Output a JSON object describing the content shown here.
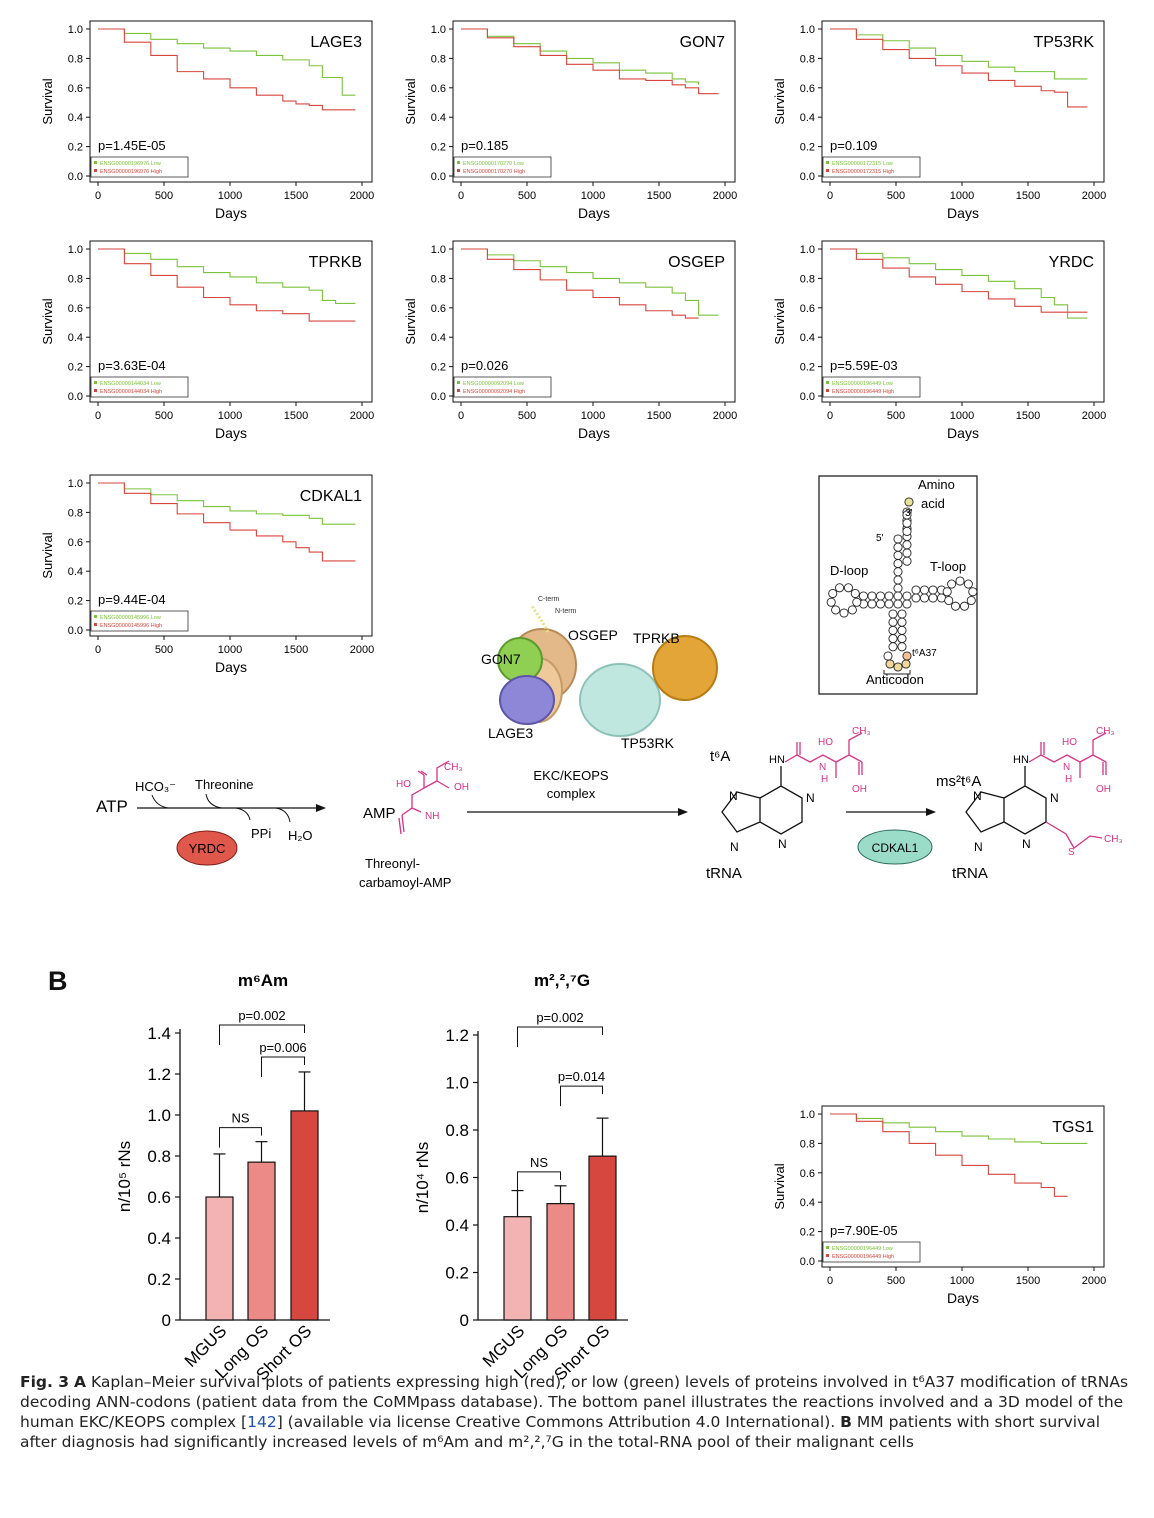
{
  "km_axes": {
    "ylabel": "Survival",
    "xlabel": "Days",
    "xticks": [
      0,
      500,
      1000,
      1500,
      2000
    ],
    "yticks": [
      0.0,
      0.2,
      0.4,
      0.6,
      0.8,
      1.0
    ],
    "ytick_labels": [
      "0.0",
      "0.2",
      "0.4",
      "0.6",
      "0.8",
      "1.0"
    ]
  },
  "colors": {
    "low": "#7bc23a",
    "high": "#d7463c",
    "bar_mgus": "#f3b3b3",
    "bar_long": "#ec8a88",
    "bar_short": "#d6473f",
    "magenta": "#d63384",
    "yrdc": "#e0574b",
    "cdkal1": "#9adcc8"
  },
  "chart_data": [
    {
      "type": "line",
      "title": "LAGE3",
      "pvalue": "p=1.45E-05",
      "xlim": [
        0,
        2000
      ],
      "ylim": [
        0,
        1
      ],
      "series": [
        {
          "name": "ENSG00000196976 Low",
          "x": [
            0,
            200,
            400,
            600,
            800,
            1000,
            1200,
            1400,
            1600,
            1700,
            1800,
            1850,
            1950
          ],
          "y": [
            1.0,
            0.97,
            0.93,
            0.9,
            0.87,
            0.85,
            0.82,
            0.79,
            0.75,
            0.67,
            0.67,
            0.55,
            0.55
          ]
        },
        {
          "name": "ENSG00000196976 High",
          "x": [
            0,
            200,
            400,
            600,
            800,
            1000,
            1200,
            1400,
            1500,
            1600,
            1700,
            1800,
            1950
          ],
          "y": [
            1.0,
            0.91,
            0.82,
            0.71,
            0.66,
            0.6,
            0.55,
            0.51,
            0.49,
            0.48,
            0.45,
            0.45,
            0.45
          ]
        }
      ]
    },
    {
      "type": "line",
      "title": "GON7",
      "pvalue": "p=0.185",
      "xlim": [
        0,
        2000
      ],
      "ylim": [
        0,
        1
      ],
      "series": [
        {
          "name": "ENSG00000170270 Low",
          "x": [
            0,
            200,
            400,
            600,
            800,
            1000,
            1200,
            1400,
            1600,
            1700,
            1800
          ],
          "y": [
            1.0,
            0.95,
            0.9,
            0.85,
            0.8,
            0.77,
            0.72,
            0.7,
            0.66,
            0.64,
            0.62
          ]
        },
        {
          "name": "ENSG00000170270 High",
          "x": [
            0,
            200,
            400,
            600,
            800,
            1000,
            1200,
            1400,
            1600,
            1700,
            1800,
            1950
          ],
          "y": [
            1.0,
            0.94,
            0.88,
            0.82,
            0.76,
            0.72,
            0.66,
            0.65,
            0.62,
            0.6,
            0.56,
            0.56
          ]
        }
      ]
    },
    {
      "type": "line",
      "title": "TP53RK",
      "pvalue": "p=0.109",
      "xlim": [
        0,
        2000
      ],
      "ylim": [
        0,
        1
      ],
      "series": [
        {
          "name": "ENSG00000172315 Low",
          "x": [
            0,
            200,
            400,
            600,
            800,
            1000,
            1200,
            1400,
            1600,
            1700,
            1800,
            1950
          ],
          "y": [
            1.0,
            0.96,
            0.92,
            0.87,
            0.82,
            0.78,
            0.74,
            0.71,
            0.71,
            0.66,
            0.66,
            0.66
          ]
        },
        {
          "name": "ENSG00000172315 High",
          "x": [
            0,
            200,
            400,
            600,
            800,
            1000,
            1200,
            1400,
            1600,
            1700,
            1800,
            1950
          ],
          "y": [
            1.0,
            0.93,
            0.86,
            0.8,
            0.75,
            0.7,
            0.65,
            0.61,
            0.58,
            0.57,
            0.47,
            0.47
          ]
        }
      ]
    },
    {
      "type": "line",
      "title": "TPRKB",
      "pvalue": "p=3.63E-04",
      "xlim": [
        0,
        2000
      ],
      "ylim": [
        0,
        1
      ],
      "series": [
        {
          "name": "ENSG00000144034 Low",
          "x": [
            0,
            200,
            400,
            600,
            800,
            1000,
            1200,
            1400,
            1600,
            1700,
            1800,
            1950
          ],
          "y": [
            1.0,
            0.97,
            0.93,
            0.88,
            0.84,
            0.81,
            0.77,
            0.74,
            0.72,
            0.65,
            0.63,
            0.63
          ]
        },
        {
          "name": "ENSG00000144034 High",
          "x": [
            0,
            200,
            400,
            600,
            800,
            1000,
            1200,
            1400,
            1500,
            1600,
            1800,
            1950
          ],
          "y": [
            1.0,
            0.9,
            0.82,
            0.74,
            0.67,
            0.62,
            0.58,
            0.56,
            0.56,
            0.51,
            0.51,
            0.51
          ]
        }
      ]
    },
    {
      "type": "line",
      "title": "OSGEP",
      "pvalue": "p=0.026",
      "xlim": [
        0,
        2000
      ],
      "ylim": [
        0,
        1
      ],
      "series": [
        {
          "name": "ENSG00000092094 Low",
          "x": [
            0,
            200,
            400,
            600,
            800,
            1000,
            1200,
            1400,
            1600,
            1700,
            1800,
            1950
          ],
          "y": [
            1.0,
            0.96,
            0.92,
            0.88,
            0.84,
            0.8,
            0.77,
            0.74,
            0.7,
            0.65,
            0.55,
            0.55
          ]
        },
        {
          "name": "ENSG00000092094 High",
          "x": [
            0,
            200,
            400,
            600,
            800,
            1000,
            1200,
            1400,
            1600,
            1700,
            1800
          ],
          "y": [
            1.0,
            0.93,
            0.86,
            0.79,
            0.72,
            0.67,
            0.62,
            0.58,
            0.55,
            0.53,
            0.53
          ]
        }
      ]
    },
    {
      "type": "line",
      "title": "YRDC",
      "pvalue": "p=5.59E-03",
      "xlim": [
        0,
        2000
      ],
      "ylim": [
        0,
        1
      ],
      "series": [
        {
          "name": "ENSG00000196449 Low",
          "x": [
            0,
            200,
            400,
            600,
            800,
            1000,
            1200,
            1400,
            1600,
            1700,
            1800,
            1950
          ],
          "y": [
            1.0,
            0.97,
            0.94,
            0.9,
            0.86,
            0.82,
            0.78,
            0.73,
            0.67,
            0.62,
            0.53,
            0.53
          ]
        },
        {
          "name": "ENSG00000196449 High",
          "x": [
            0,
            200,
            400,
            600,
            800,
            1000,
            1200,
            1400,
            1600,
            1700,
            1800,
            1950
          ],
          "y": [
            1.0,
            0.93,
            0.87,
            0.81,
            0.76,
            0.71,
            0.66,
            0.61,
            0.57,
            0.57,
            0.57,
            0.57
          ]
        }
      ]
    },
    {
      "type": "line",
      "title": "CDKAL1",
      "pvalue": "p=9.44E-04",
      "xlim": [
        0,
        2000
      ],
      "ylim": [
        0,
        1
      ],
      "series": [
        {
          "name": "ENSG00000145996 Low",
          "x": [
            0,
            200,
            400,
            600,
            800,
            1000,
            1200,
            1400,
            1600,
            1700,
            1800,
            1950
          ],
          "y": [
            1.0,
            0.96,
            0.92,
            0.88,
            0.84,
            0.81,
            0.79,
            0.78,
            0.76,
            0.72,
            0.72,
            0.72
          ]
        },
        {
          "name": "ENSG00000145996 High",
          "x": [
            0,
            200,
            400,
            600,
            800,
            1000,
            1200,
            1400,
            1500,
            1600,
            1700,
            1800,
            1950
          ],
          "y": [
            1.0,
            0.93,
            0.86,
            0.79,
            0.73,
            0.68,
            0.64,
            0.6,
            0.56,
            0.53,
            0.47,
            0.47,
            0.47
          ]
        }
      ]
    },
    {
      "type": "line",
      "title": "TGS1",
      "pvalue": "p=7.90E-05",
      "xlim": [
        0,
        2000
      ],
      "ylim": [
        0,
        1
      ],
      "series": [
        {
          "name": "ENSG00000196449 Low",
          "x": [
            0,
            200,
            400,
            600,
            800,
            1000,
            1200,
            1400,
            1600,
            1800,
            1950
          ],
          "y": [
            1.0,
            0.97,
            0.94,
            0.91,
            0.88,
            0.85,
            0.83,
            0.81,
            0.8,
            0.8,
            0.8
          ]
        },
        {
          "name": "ENSG00000196449 High",
          "x": [
            0,
            200,
            400,
            600,
            800,
            1000,
            1200,
            1400,
            1600,
            1700,
            1800
          ],
          "y": [
            1.0,
            0.95,
            0.88,
            0.8,
            0.72,
            0.65,
            0.59,
            0.53,
            0.5,
            0.44,
            0.44
          ]
        }
      ]
    },
    {
      "type": "bar",
      "title": "m⁶Am",
      "ylabel": "n/10⁵ rNs",
      "ylim": [
        0,
        1.4
      ],
      "yticks": [
        "0",
        "0.2",
        "0.4",
        "0.6",
        "0.8",
        "1.0",
        "1.2",
        "1.4"
      ],
      "categories": [
        "MGUS",
        "Long OS",
        "Short OS"
      ],
      "values": [
        0.6,
        0.77,
        1.02
      ],
      "errors": [
        0.21,
        0.1,
        0.19
      ],
      "comparisons": [
        {
          "pair": [
            0,
            1
          ],
          "label": "NS"
        },
        {
          "pair": [
            1,
            2
          ],
          "label": "p=0.006"
        },
        {
          "pair": [
            0,
            2
          ],
          "label": "p=0.002"
        }
      ]
    },
    {
      "type": "bar",
      "title": "m²,²,⁷G",
      "ylabel": "n/10⁴ rNs",
      "ylim": [
        0,
        1.2
      ],
      "yticks": [
        "0",
        "0.2",
        "0.4",
        "0.6",
        "0.8",
        "1.0",
        "1.2"
      ],
      "categories": [
        "MGUS",
        "Long OS",
        "Short OS"
      ],
      "values": [
        0.435,
        0.49,
        0.69
      ],
      "errors": [
        0.11,
        0.075,
        0.16
      ],
      "comparisons": [
        {
          "pair": [
            0,
            1
          ],
          "label": "NS"
        },
        {
          "pair": [
            1,
            2
          ],
          "label": "p=0.014"
        },
        {
          "pair": [
            0,
            2
          ],
          "label": "p=0.002"
        }
      ]
    }
  ],
  "diagram": {
    "complex_labels": [
      "GON7",
      "OSGEP",
      "TPRKB",
      "LAGE3",
      "TP53RK"
    ],
    "cterm": "C-term",
    "nterm": "N-term",
    "trna": {
      "amino_acid_1": "Amino",
      "amino_acid_2": "acid",
      "three_prime": "3'",
      "five_prime": "5'",
      "dloop": "D-loop",
      "tloop": "T-loop",
      "t6a37": "t⁶A37",
      "anticodon": "Anticodon"
    },
    "reaction": {
      "atp": "ATP",
      "hco3": "HCO₃⁻",
      "threonine": "Threonine",
      "ppi": "PPi",
      "h2o": "H₂O",
      "yrdc": "YRDC",
      "amp": "AMP",
      "tcamp_1": "Threonyl-",
      "tcamp_2": "carbamoyl-AMP",
      "ekc_1": "EKC/KEOPS",
      "ekc_2": "complex",
      "t6a": "t⁶A",
      "ms2t6a": "ms²t⁶A",
      "cdkal1": "CDKAL1",
      "trna": "tRNA",
      "ho": "HO",
      "oh": "OH",
      "ch3": "CH₃",
      "hn": "HN",
      "nh": "NH",
      "h": "H",
      "n": "N",
      "s": "S"
    }
  },
  "panel_b_label": "B",
  "caption": {
    "fig": "Fig. 3",
    "a": "A",
    "text_1": "Kaplan–Meier survival plots of patients expressing high (red), or low (green) levels of proteins involved in t⁶A37 modification of tRNAs decoding ANN-codons (patient data from the CoMMpass database). The bottom panel illustrates the reactions involved and a 3D model of the human EKC/KEOPS complex [",
    "ref": "142",
    "text_2": "] (available via license Creative Commons Attribution 4.0 International).",
    "b": "B",
    "text_3": "MM patients with short survival after diagnosis had significantly increased levels of m⁶Am and m²,²,⁷G in the total-RNA pool of their malignant cells"
  }
}
